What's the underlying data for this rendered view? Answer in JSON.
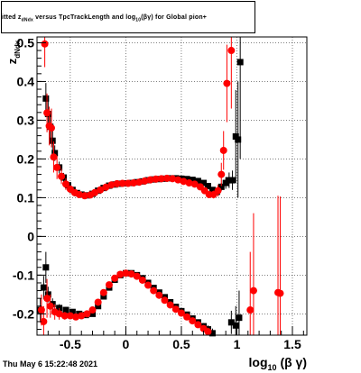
{
  "header": {
    "title_pre": "itted  z",
    "title_sub1": "dNdx",
    "title_mid": "  versus TpcTrackLength and log",
    "title_sub2": "10",
    "title_post": "(βγ) for Global pion+"
  },
  "footer": {
    "timestamp": "Thu May  6 15:22:48 2021"
  },
  "chart_data": {
    "type": "scatter",
    "xlabel": "log10 (β γ)",
    "ylabel": "zdNdx",
    "xlim": [
      -0.8,
      1.63
    ],
    "ylim": [
      -0.255,
      0.515
    ],
    "grid": true,
    "x_ticks": [
      {
        "v": -0.5,
        "label": "-0.5"
      },
      {
        "v": 0,
        "label": "0"
      },
      {
        "v": 0.5,
        "label": "0.5"
      },
      {
        "v": 1.0,
        "label": "1"
      },
      {
        "v": 1.5,
        "label": "1.5"
      }
    ],
    "y_ticks": [
      {
        "v": -0.2,
        "label": "-0.2"
      },
      {
        "v": -0.1,
        "label": "-0.1"
      },
      {
        "v": 0,
        "label": "0"
      },
      {
        "v": 0.1,
        "label": "0.1"
      },
      {
        "v": 0.2,
        "label": "0.2"
      },
      {
        "v": 0.3,
        "label": "0.3"
      },
      {
        "v": 0.4,
        "label": "0.4"
      },
      {
        "v": 0.5,
        "label": "0.5"
      }
    ],
    "series": [
      {
        "color": "#000000",
        "marker": "square",
        "points": [
          [
            -0.72,
            0.356,
            0.04
          ],
          [
            -0.7,
            0.316,
            0.035
          ],
          [
            -0.68,
            0.283,
            0.03
          ],
          [
            -0.66,
            0.247,
            0.025
          ],
          [
            -0.64,
            0.215,
            0.02
          ],
          [
            -0.6,
            0.178,
            0.015
          ],
          [
            -0.56,
            0.152,
            0.012
          ],
          [
            -0.52,
            0.132,
            0.01
          ],
          [
            -0.48,
            0.12,
            0.008
          ],
          [
            -0.44,
            0.112,
            0.006
          ],
          [
            -0.4,
            0.108,
            0.005
          ],
          [
            -0.35,
            0.106,
            0.004
          ],
          [
            -0.3,
            0.11,
            0.003
          ],
          [
            -0.25,
            0.118,
            0.003
          ],
          [
            -0.2,
            0.125,
            0.003
          ],
          [
            -0.15,
            0.131,
            0.002
          ],
          [
            -0.1,
            0.134,
            0.002
          ],
          [
            -0.05,
            0.136,
            0.002
          ],
          [
            0.0,
            0.137,
            0.002
          ],
          [
            0.05,
            0.138,
            0.002
          ],
          [
            0.1,
            0.14,
            0.002
          ],
          [
            0.15,
            0.142,
            0.002
          ],
          [
            0.2,
            0.145,
            0.002
          ],
          [
            0.25,
            0.147,
            0.002
          ],
          [
            0.3,
            0.148,
            0.002
          ],
          [
            0.35,
            0.149,
            0.002
          ],
          [
            0.4,
            0.15,
            0.002
          ],
          [
            0.45,
            0.15,
            0.002
          ],
          [
            0.5,
            0.149,
            0.002
          ],
          [
            0.55,
            0.148,
            0.003
          ],
          [
            0.6,
            0.146,
            0.003
          ],
          [
            0.65,
            0.143,
            0.003
          ],
          [
            0.7,
            0.138,
            0.004
          ],
          [
            0.74,
            0.13,
            0.005
          ],
          [
            0.78,
            0.12,
            0.006
          ],
          [
            0.82,
            0.115,
            0.008
          ],
          [
            0.86,
            0.128,
            0.01
          ],
          [
            0.9,
            0.138,
            0.015
          ],
          [
            0.93,
            0.145,
            0.02
          ],
          [
            0.96,
            0.145,
            0.025
          ],
          [
            0.99,
            0.258,
            0.12
          ],
          [
            1.01,
            0.25,
            0.15
          ],
          [
            1.03,
            0.45,
            0.25
          ],
          [
            -0.77,
            -0.19,
            0.03
          ],
          [
            -0.74,
            -0.132,
            0.03
          ],
          [
            -0.72,
            -0.08,
            0.04
          ],
          [
            -0.7,
            -0.15,
            0.02
          ],
          [
            -0.66,
            -0.175,
            0.015
          ],
          [
            -0.6,
            -0.185,
            0.01
          ],
          [
            -0.54,
            -0.19,
            0.008
          ],
          [
            -0.48,
            -0.195,
            0.006
          ],
          [
            -0.42,
            -0.2,
            0.005
          ],
          [
            -0.36,
            -0.203,
            0.004
          ],
          [
            -0.3,
            -0.2,
            0.004
          ],
          [
            -0.25,
            -0.18,
            0.003
          ],
          [
            -0.2,
            -0.155,
            0.003
          ],
          [
            -0.15,
            -0.132,
            0.003
          ],
          [
            -0.1,
            -0.112,
            0.003
          ],
          [
            -0.05,
            -0.1,
            0.002
          ],
          [
            0.0,
            -0.095,
            0.002
          ],
          [
            0.05,
            -0.095,
            0.002
          ],
          [
            0.1,
            -0.1,
            0.002
          ],
          [
            0.15,
            -0.108,
            0.002
          ],
          [
            0.2,
            -0.12,
            0.002
          ],
          [
            0.25,
            -0.133,
            0.003
          ],
          [
            0.3,
            -0.145,
            0.003
          ],
          [
            0.35,
            -0.157,
            0.003
          ],
          [
            0.4,
            -0.17,
            0.003
          ],
          [
            0.45,
            -0.182,
            0.004
          ],
          [
            0.5,
            -0.193,
            0.004
          ],
          [
            0.55,
            -0.202,
            0.005
          ],
          [
            0.6,
            -0.212,
            0.006
          ],
          [
            0.65,
            -0.222,
            0.007
          ],
          [
            0.7,
            -0.232,
            0.008
          ],
          [
            0.74,
            -0.24,
            0.01
          ],
          [
            0.78,
            -0.25,
            0.012
          ],
          [
            0.95,
            -0.222,
            0.03
          ],
          [
            0.99,
            -0.23,
            0.05
          ],
          [
            1.02,
            -0.21,
            0.07
          ]
        ]
      },
      {
        "color": "#ff0000",
        "marker": "circle",
        "points": [
          [
            -0.73,
            0.497,
            0.06
          ],
          [
            -0.71,
            0.319,
            0.05
          ],
          [
            -0.69,
            0.285,
            0.05
          ],
          [
            -0.67,
            0.28,
            0.05
          ],
          [
            -0.65,
            0.205,
            0.04
          ],
          [
            -0.62,
            0.178,
            0.03
          ],
          [
            -0.58,
            0.155,
            0.02
          ],
          [
            -0.54,
            0.135,
            0.015
          ],
          [
            -0.5,
            0.122,
            0.01
          ],
          [
            -0.46,
            0.113,
            0.008
          ],
          [
            -0.42,
            0.108,
            0.006
          ],
          [
            -0.37,
            0.105,
            0.005
          ],
          [
            -0.32,
            0.107,
            0.004
          ],
          [
            -0.28,
            0.113,
            0.004
          ],
          [
            -0.23,
            0.12,
            0.003
          ],
          [
            -0.18,
            0.127,
            0.003
          ],
          [
            -0.13,
            0.133,
            0.003
          ],
          [
            -0.08,
            0.136,
            0.003
          ],
          [
            -0.03,
            0.137,
            0.003
          ],
          [
            0.02,
            0.137,
            0.003
          ],
          [
            0.07,
            0.138,
            0.003
          ],
          [
            0.12,
            0.14,
            0.003
          ],
          [
            0.17,
            0.143,
            0.003
          ],
          [
            0.22,
            0.146,
            0.003
          ],
          [
            0.27,
            0.148,
            0.003
          ],
          [
            0.32,
            0.149,
            0.003
          ],
          [
            0.37,
            0.15,
            0.003
          ],
          [
            0.42,
            0.149,
            0.003
          ],
          [
            0.47,
            0.146,
            0.003
          ],
          [
            0.52,
            0.142,
            0.003
          ],
          [
            0.57,
            0.138,
            0.004
          ],
          [
            0.62,
            0.135,
            0.004
          ],
          [
            0.67,
            0.128,
            0.005
          ],
          [
            0.71,
            0.118,
            0.006
          ],
          [
            0.75,
            0.108,
            0.008
          ],
          [
            0.79,
            0.108,
            0.01
          ],
          [
            0.83,
            0.118,
            0.015
          ],
          [
            0.86,
            0.16,
            0.03
          ],
          [
            0.88,
            0.222,
            0.05
          ],
          [
            0.91,
            0.395,
            0.1
          ],
          [
            0.95,
            0.48,
            0.15
          ],
          [
            -0.76,
            -0.19,
            0.04
          ],
          [
            -0.74,
            -0.22,
            0.04
          ],
          [
            -0.71,
            -0.16,
            0.05
          ],
          [
            -0.68,
            -0.18,
            0.03
          ],
          [
            -0.64,
            -0.195,
            0.02
          ],
          [
            -0.6,
            -0.2,
            0.015
          ],
          [
            -0.55,
            -0.205,
            0.01
          ],
          [
            -0.5,
            -0.205,
            0.008
          ],
          [
            -0.45,
            -0.208,
            0.006
          ],
          [
            -0.4,
            -0.205,
            0.005
          ],
          [
            -0.35,
            -0.2,
            0.005
          ],
          [
            -0.3,
            -0.19,
            0.004
          ],
          [
            -0.25,
            -0.17,
            0.004
          ],
          [
            -0.2,
            -0.145,
            0.003
          ],
          [
            -0.15,
            -0.125,
            0.003
          ],
          [
            -0.1,
            -0.108,
            0.003
          ],
          [
            -0.05,
            -0.098,
            0.003
          ],
          [
            0.0,
            -0.095,
            0.003
          ],
          [
            0.05,
            -0.097,
            0.003
          ],
          [
            0.1,
            -0.103,
            0.003
          ],
          [
            0.15,
            -0.113,
            0.003
          ],
          [
            0.2,
            -0.126,
            0.003
          ],
          [
            0.25,
            -0.14,
            0.003
          ],
          [
            0.3,
            -0.152,
            0.004
          ],
          [
            0.35,
            -0.165,
            0.004
          ],
          [
            0.4,
            -0.177,
            0.004
          ],
          [
            0.45,
            -0.188,
            0.005
          ],
          [
            0.5,
            -0.198,
            0.005
          ],
          [
            0.55,
            -0.208,
            0.006
          ],
          [
            0.6,
            -0.218,
            0.007
          ],
          [
            0.65,
            -0.228,
            0.008
          ],
          [
            0.7,
            -0.238,
            0.009
          ],
          [
            0.74,
            -0.246,
            0.01
          ],
          [
            1.12,
            -0.19,
            0.15
          ],
          [
            1.15,
            -0.14,
            0.2
          ],
          [
            1.37,
            -0.145,
            0.25
          ],
          [
            1.39,
            -0.147,
            0.25
          ]
        ]
      }
    ]
  }
}
